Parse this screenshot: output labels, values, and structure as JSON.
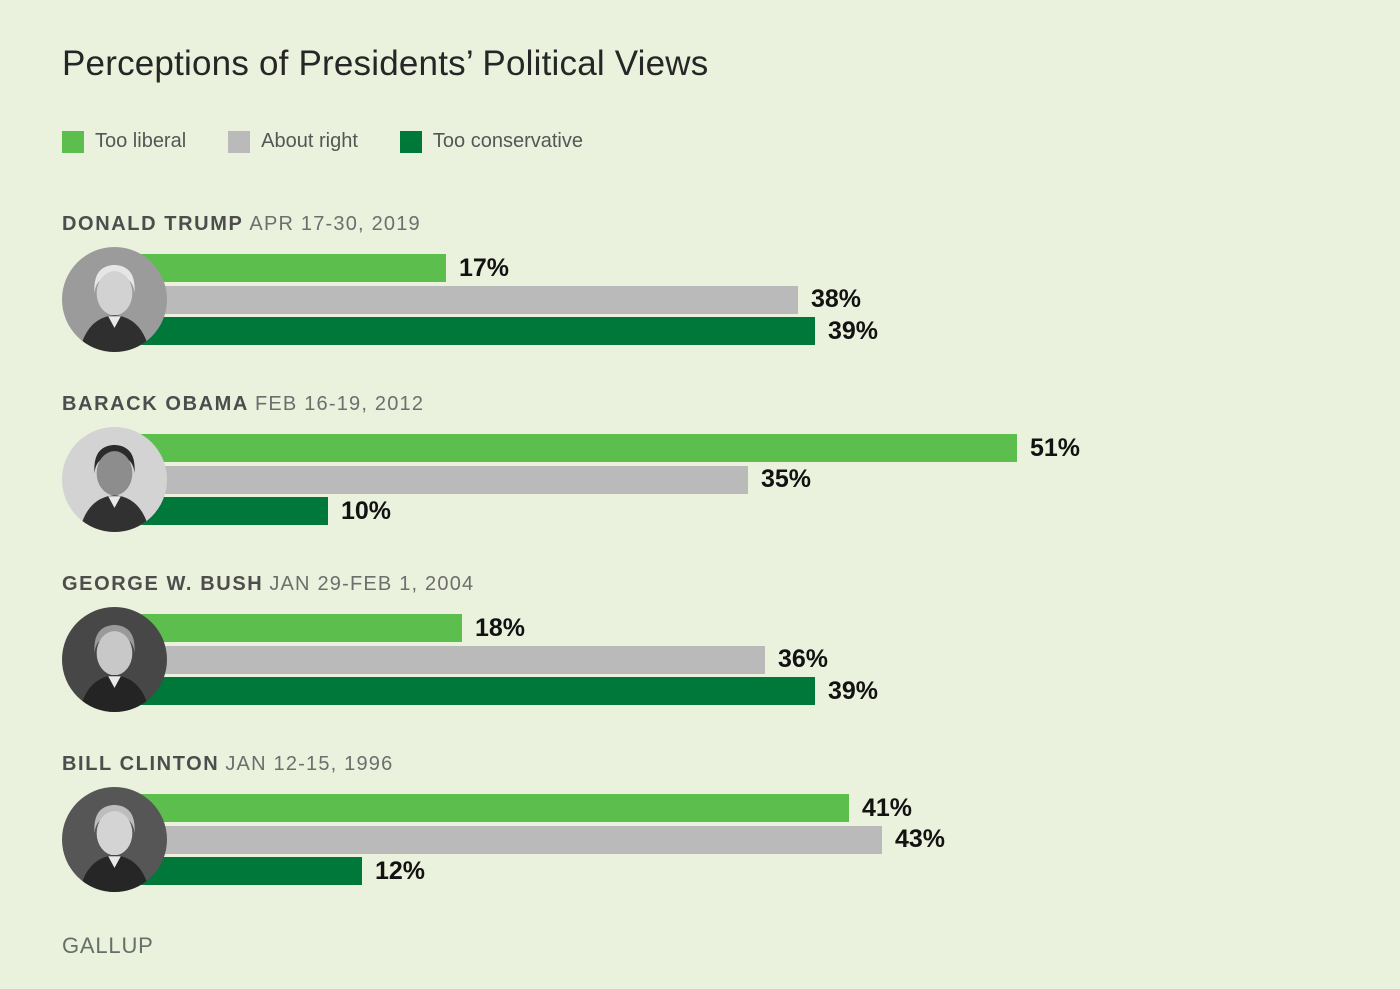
{
  "title": "Perceptions of Presidents’ Political Views",
  "legend": [
    {
      "label": "Too liberal",
      "color": "#5CBE4D"
    },
    {
      "label": "About right",
      "color": "#BABABA"
    },
    {
      "label": "Too conservative",
      "color": "#00783A"
    }
  ],
  "footer": "GALLUP",
  "chart_data": {
    "type": "bar",
    "orientation": "horizontal",
    "title": "Perceptions of Presidents’ Political Views",
    "value_suffix": "%",
    "value_range": [
      0,
      55
    ],
    "grid": false,
    "legend_position": "top",
    "categories": [
      "Too liberal",
      "About right",
      "Too conservative"
    ],
    "groups": [
      {
        "name": "DONALD TRUMP",
        "date": "APR 17-30, 2019",
        "portrait_icon": "donald-trump-portrait",
        "values": [
          17,
          38,
          39
        ]
      },
      {
        "name": "BARACK OBAMA",
        "date": "FEB 16-19, 2012",
        "portrait_icon": "barack-obama-portrait",
        "values": [
          51,
          35,
          10
        ]
      },
      {
        "name": "GEORGE W. BUSH",
        "date": "JAN 29-FEB 1, 2004",
        "portrait_icon": "george-w-bush-portrait",
        "values": [
          18,
          36,
          39
        ]
      },
      {
        "name": "BILL CLINTON",
        "date": "JAN 12-15, 1996",
        "portrait_icon": "bill-clinton-portrait",
        "values": [
          41,
          43,
          12
        ]
      }
    ]
  }
}
